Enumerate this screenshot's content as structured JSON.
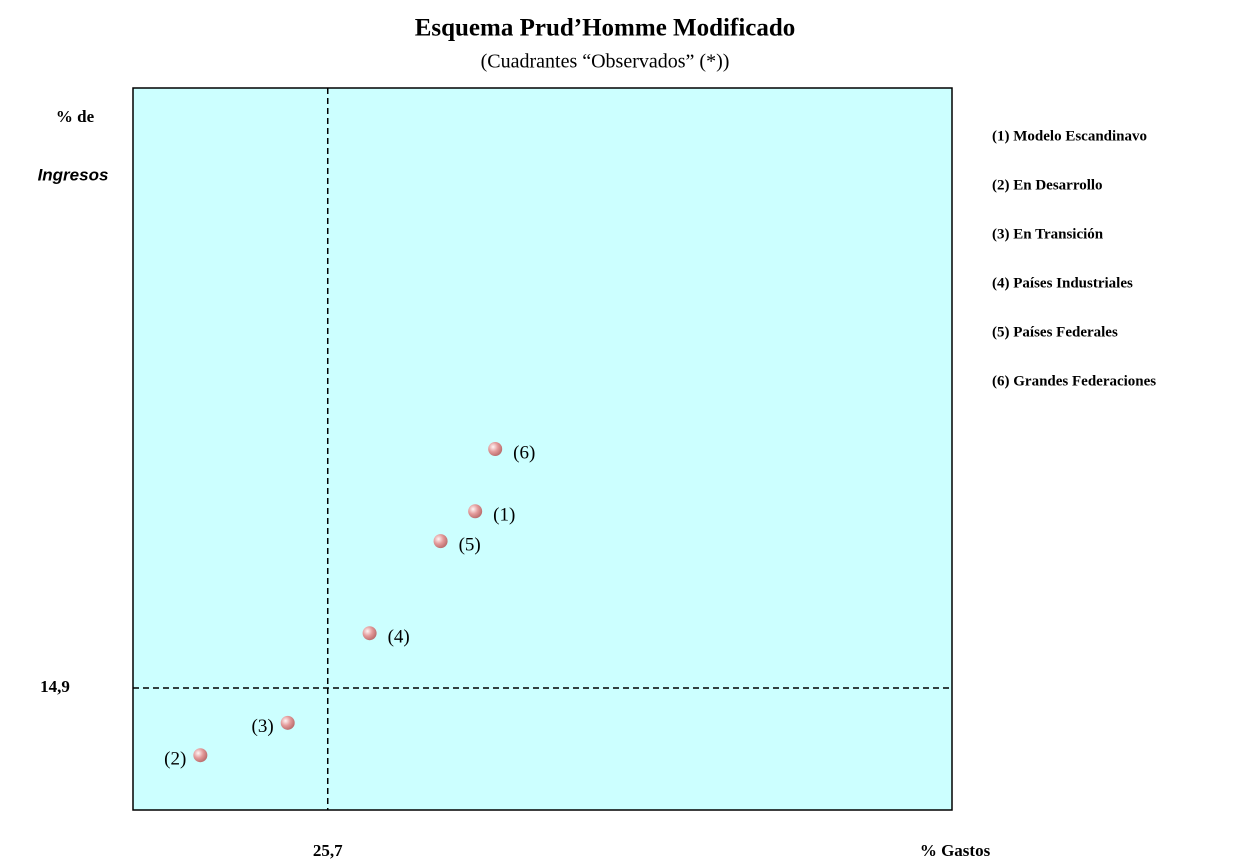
{
  "chart_data": {
    "type": "scatter",
    "title": "Esquema Prud’Homme Modificado",
    "subtitle": "(Cuadrantes “Observados” (*))",
    "ylabel": [
      "% de",
      "Ingresos"
    ],
    "xlabel": "% Gastos",
    "xlim": [
      15,
      60
    ],
    "ylim": [
      10,
      39
    ],
    "xticks": [
      {
        "value": 25.7,
        "label": "25,7"
      }
    ],
    "yticks": [
      {
        "value": 14.9,
        "label": "14,9"
      }
    ],
    "background": "#ccffff",
    "color": "#e39a9a",
    "points": {
      "labels": [
        "(6)",
        "(1)",
        "(5)",
        "(4)",
        "(3)",
        "(2)"
      ],
      "x": [
        34.9,
        33.8,
        31.9,
        28.0,
        23.5,
        18.7
      ],
      "y": [
        24.5,
        22.0,
        20.8,
        17.1,
        13.5,
        12.2
      ]
    },
    "legend": [
      "(1) Modelo Escandinavo",
      "(2) En Desarrollo",
      "(3) En Transición",
      "(4) Países Industriales",
      "(5) Países Federales",
      "(6) Grandes Federaciones"
    ]
  }
}
